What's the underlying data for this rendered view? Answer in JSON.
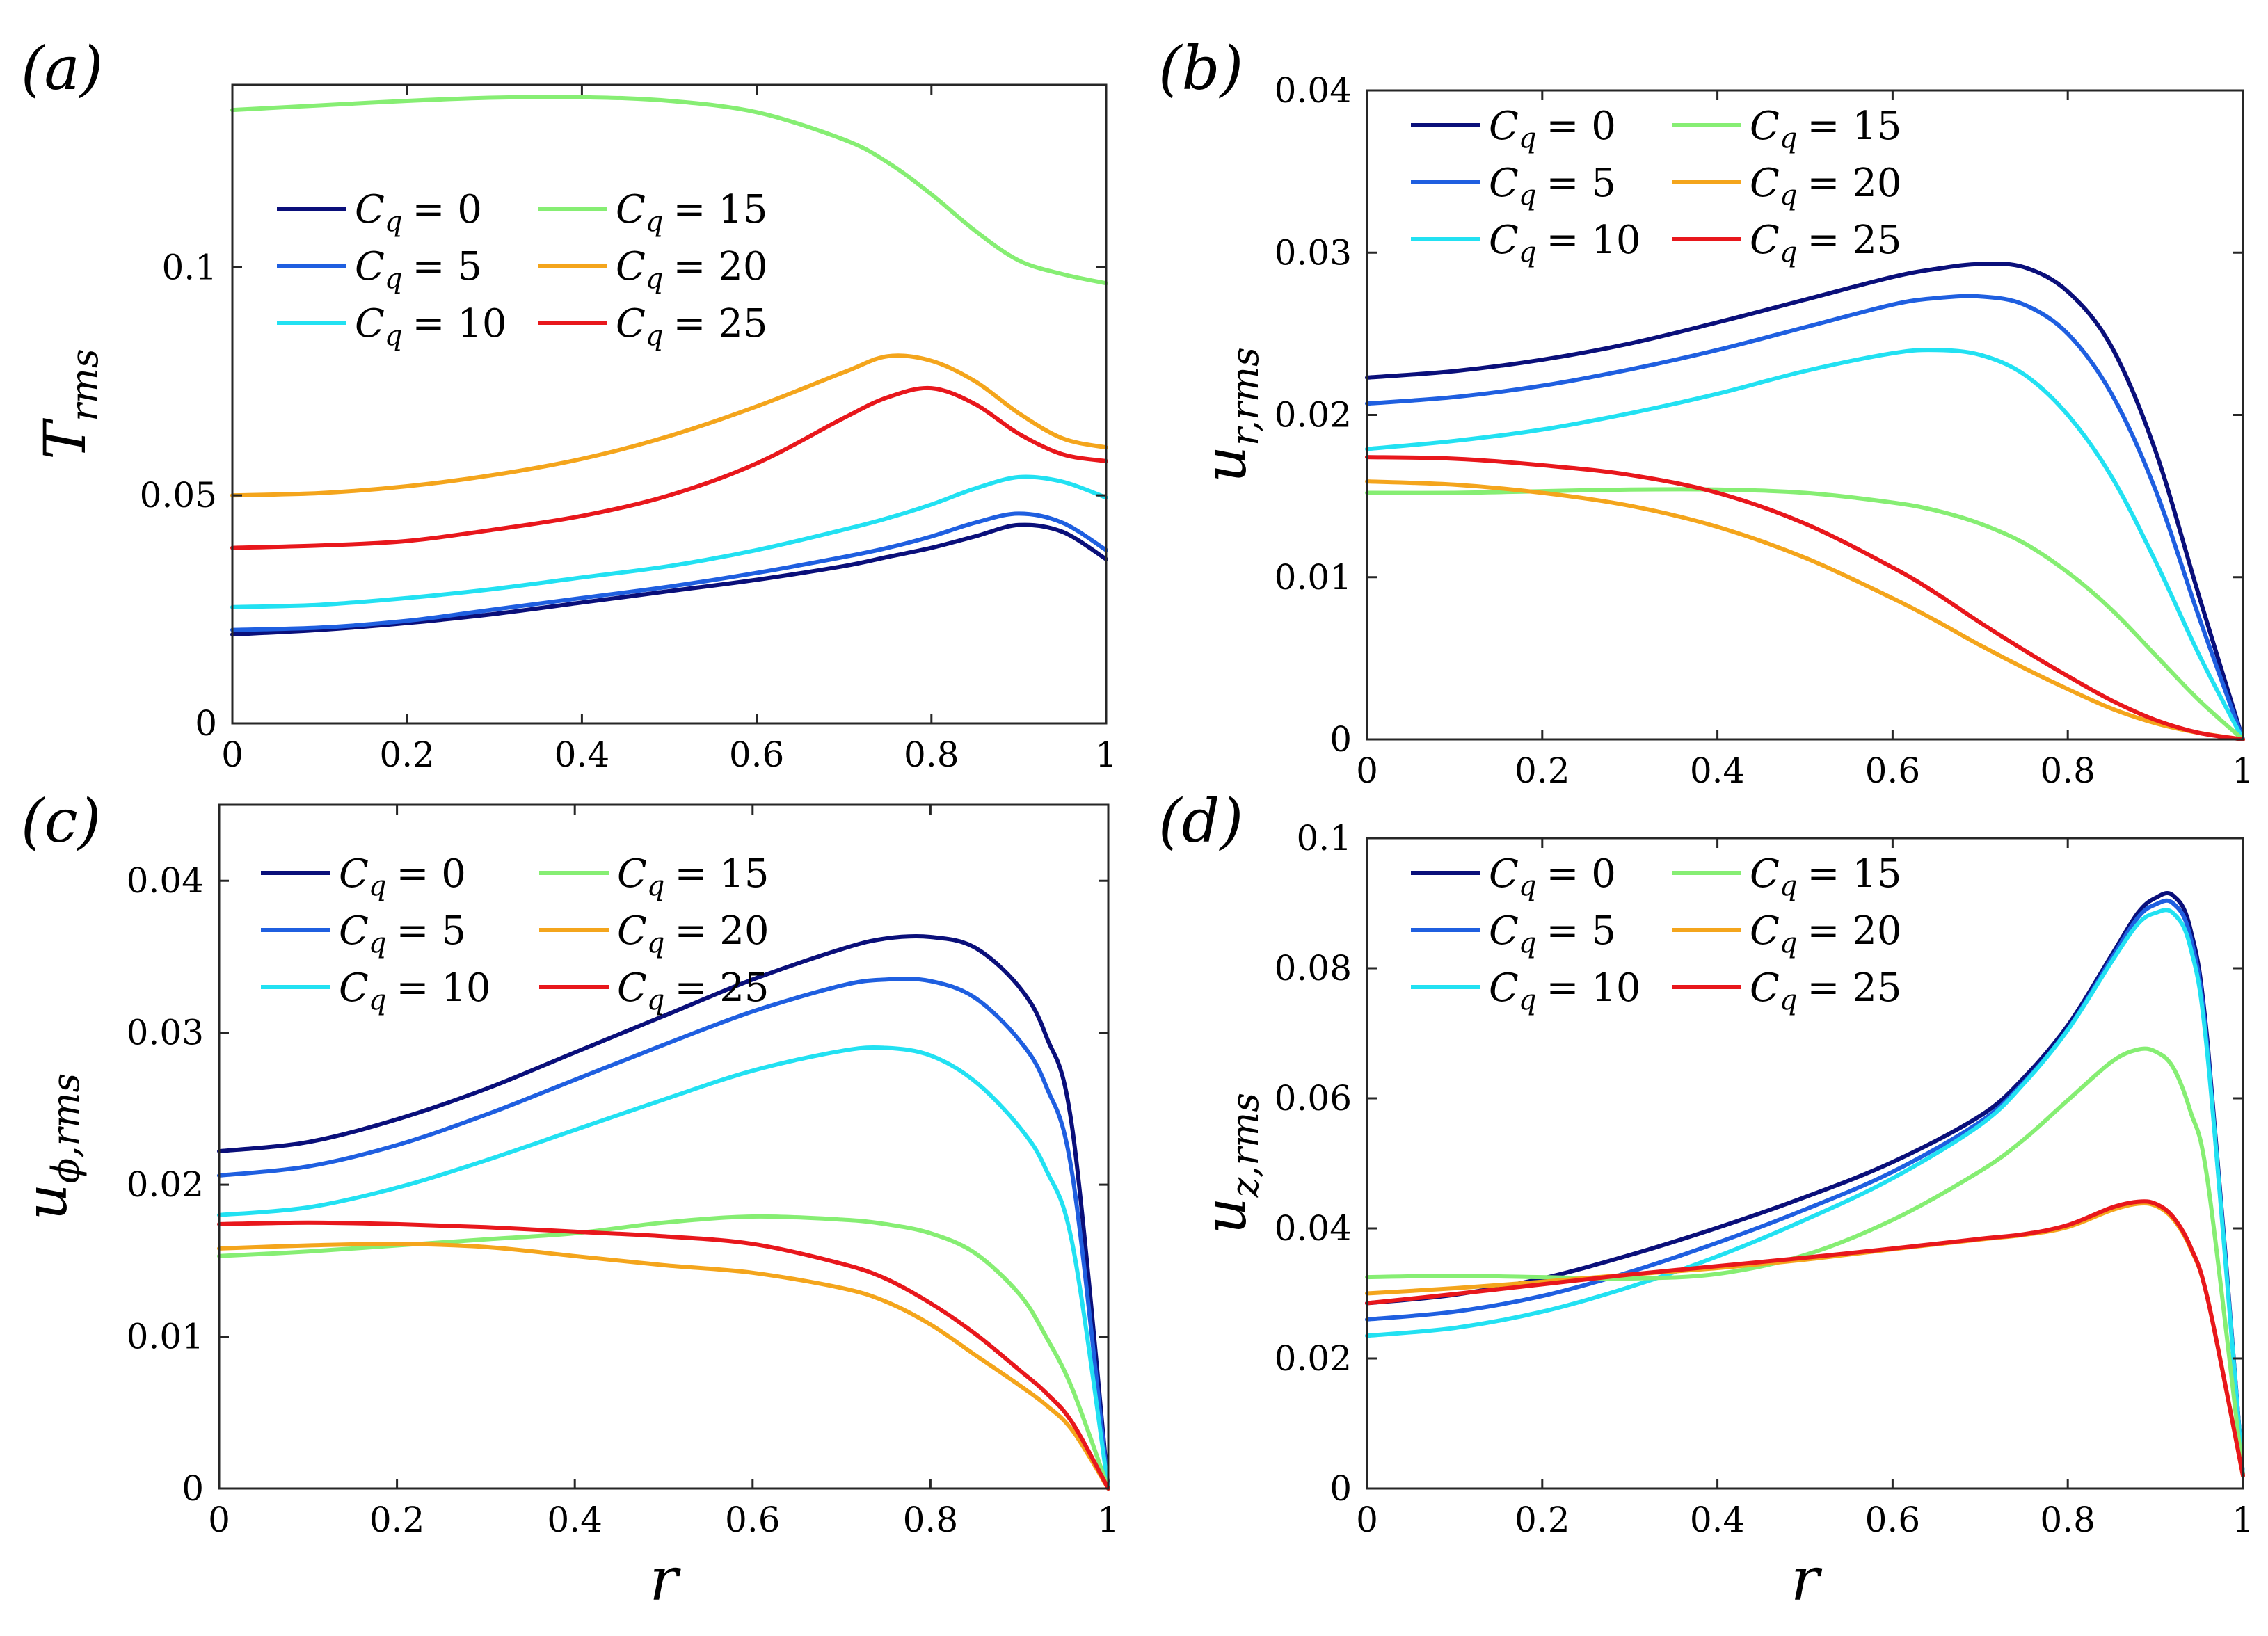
{
  "colors": [
    "#0a0f7a",
    "#1f5fe0",
    "#22e1f2",
    "#86ee73",
    "#f4a51c",
    "#e8171c"
  ],
  "chart_data": [
    {
      "id": "a",
      "type": "line",
      "panel_label": "(a)",
      "ylabel_main": "T",
      "ylabel_sub": "rms",
      "xlabel": "",
      "xlim": [
        0,
        1
      ],
      "ylim": [
        0,
        0.14
      ],
      "xticks": [
        0,
        0.2,
        0.4,
        0.6,
        0.8,
        1
      ],
      "xtick_labels": [
        "0",
        "0.2",
        "0.4",
        "0.6",
        "0.8",
        "1"
      ],
      "yticks": [
        0,
        0.05,
        0.1
      ],
      "ytick_labels": [
        "0",
        "0.05",
        "0.1"
      ],
      "legend": "upper-left",
      "x": [
        0,
        0.1,
        0.2,
        0.3,
        0.4,
        0.5,
        0.6,
        0.7,
        0.75,
        0.8,
        0.85,
        0.9,
        0.95,
        1
      ],
      "series": [
        {
          "name": "C_q = 0",
          "values": [
            0.0195,
            0.0205,
            0.022,
            0.024,
            0.0265,
            0.029,
            0.0315,
            0.0345,
            0.0365,
            0.0385,
            0.041,
            0.0435,
            0.042,
            0.036
          ]
        },
        {
          "name": "C_q = 5",
          "values": [
            0.0205,
            0.021,
            0.0225,
            0.025,
            0.0275,
            0.03,
            0.033,
            0.0365,
            0.0385,
            0.041,
            0.044,
            0.046,
            0.044,
            0.038
          ]
        },
        {
          "name": "C_q = 10",
          "values": [
            0.0255,
            0.026,
            0.0275,
            0.0295,
            0.032,
            0.0345,
            0.038,
            0.0425,
            0.045,
            0.048,
            0.0515,
            0.054,
            0.053,
            0.0495
          ]
        },
        {
          "name": "C_q = 15",
          "values": [
            0.1345,
            0.1355,
            0.1365,
            0.1372,
            0.1373,
            0.1365,
            0.134,
            0.128,
            0.123,
            0.116,
            0.108,
            0.1015,
            0.0985,
            0.0965
          ]
        },
        {
          "name": "C_q = 20",
          "values": [
            0.05,
            0.0505,
            0.052,
            0.0545,
            0.058,
            0.063,
            0.0695,
            0.077,
            0.0805,
            0.0795,
            0.075,
            0.068,
            0.0625,
            0.0605
          ]
        },
        {
          "name": "C_q = 25",
          "values": [
            0.0385,
            0.039,
            0.04,
            0.0425,
            0.0455,
            0.05,
            0.057,
            0.067,
            0.0715,
            0.0735,
            0.07,
            0.0635,
            0.059,
            0.0575
          ]
        }
      ]
    },
    {
      "id": "b",
      "type": "line",
      "panel_label": "(b)",
      "ylabel_main": "u",
      "ylabel_sub": "r,rms",
      "xlabel": "",
      "xlim": [
        0,
        1
      ],
      "ylim": [
        0,
        0.04
      ],
      "xticks": [
        0,
        0.2,
        0.4,
        0.6,
        0.8,
        1
      ],
      "xtick_labels": [
        "0",
        "0.2",
        "0.4",
        "0.6",
        "0.8",
        "1"
      ],
      "yticks": [
        0,
        0.01,
        0.02,
        0.03,
        0.04
      ],
      "ytick_labels": [
        "0",
        "0.01",
        "0.02",
        "0.03",
        "0.04"
      ],
      "legend": "top-left",
      "x": [
        0,
        0.1,
        0.2,
        0.3,
        0.4,
        0.5,
        0.6,
        0.65,
        0.7,
        0.75,
        0.8,
        0.85,
        0.9,
        0.95,
        1
      ],
      "series": [
        {
          "name": "C_q = 0",
          "values": [
            0.0223,
            0.0227,
            0.0234,
            0.0244,
            0.0257,
            0.0271,
            0.0285,
            0.029,
            0.0293,
            0.0291,
            0.0276,
            0.0242,
            0.0178,
            0.0088,
            0
          ]
        },
        {
          "name": "C_q = 5",
          "values": [
            0.0207,
            0.0211,
            0.0218,
            0.0228,
            0.024,
            0.0254,
            0.0268,
            0.0272,
            0.0273,
            0.0268,
            0.025,
            0.0213,
            0.0154,
            0.0075,
            0
          ]
        },
        {
          "name": "C_q = 10",
          "values": [
            0.0179,
            0.0184,
            0.0191,
            0.0201,
            0.0213,
            0.0227,
            0.0238,
            0.024,
            0.0237,
            0.0225,
            0.02,
            0.0162,
            0.011,
            0.0052,
            0
          ]
        },
        {
          "name": "C_q = 15",
          "values": [
            0.0152,
            0.0152,
            0.0153,
            0.0154,
            0.0154,
            0.0152,
            0.0146,
            0.0141,
            0.0133,
            0.0121,
            0.0103,
            0.008,
            0.0052,
            0.0024,
            0
          ]
        },
        {
          "name": "C_q = 20",
          "values": [
            0.0159,
            0.0157,
            0.0152,
            0.0144,
            0.0131,
            0.0112,
            0.0087,
            0.0073,
            0.0058,
            0.0044,
            0.0031,
            0.0019,
            0.001,
            0.0004,
            0
          ]
        },
        {
          "name": "C_q = 25",
          "values": [
            0.0174,
            0.0173,
            0.0169,
            0.0163,
            0.0152,
            0.0133,
            0.0106,
            0.009,
            0.0072,
            0.0055,
            0.0039,
            0.0024,
            0.0012,
            0.0004,
            0
          ]
        }
      ]
    },
    {
      "id": "c",
      "type": "line",
      "panel_label": "(c)",
      "ylabel_main": "u",
      "ylabel_sub": "ϕ,rms",
      "xlabel": "r",
      "xlim": [
        0,
        1
      ],
      "ylim": [
        0,
        0.045
      ],
      "xticks": [
        0,
        0.2,
        0.4,
        0.6,
        0.8,
        1
      ],
      "xtick_labels": [
        "0",
        "0.2",
        "0.4",
        "0.6",
        "0.8",
        "1"
      ],
      "yticks": [
        0,
        0.01,
        0.02,
        0.03,
        0.04
      ],
      "ytick_labels": [
        "0",
        "0.01",
        "0.02",
        "0.03",
        "0.04"
      ],
      "legend": "top",
      "x": [
        0,
        0.1,
        0.2,
        0.3,
        0.4,
        0.5,
        0.6,
        0.7,
        0.75,
        0.8,
        0.85,
        0.9,
        0.93,
        0.96,
        1
      ],
      "series": [
        {
          "name": "C_q = 0",
          "values": [
            0.0222,
            0.0228,
            0.0243,
            0.0263,
            0.0287,
            0.0311,
            0.0335,
            0.0355,
            0.0362,
            0.0363,
            0.0356,
            0.033,
            0.0298,
            0.0235,
            0
          ]
        },
        {
          "name": "C_q = 5",
          "values": [
            0.0206,
            0.0212,
            0.0226,
            0.0246,
            0.0269,
            0.0292,
            0.0314,
            0.0331,
            0.0335,
            0.0334,
            0.0323,
            0.0295,
            0.0265,
            0.0205,
            0
          ]
        },
        {
          "name": "C_q = 10",
          "values": [
            0.018,
            0.0185,
            0.0198,
            0.0216,
            0.0236,
            0.0256,
            0.0275,
            0.0288,
            0.029,
            0.0285,
            0.0268,
            0.0238,
            0.021,
            0.016,
            0
          ]
        },
        {
          "name": "C_q = 15",
          "values": [
            0.0153,
            0.0156,
            0.016,
            0.0164,
            0.0168,
            0.0175,
            0.0179,
            0.0177,
            0.0174,
            0.0168,
            0.0155,
            0.0128,
            0.01,
            0.0065,
            0
          ]
        },
        {
          "name": "C_q = 20",
          "values": [
            0.0158,
            0.016,
            0.0161,
            0.0159,
            0.0153,
            0.0147,
            0.0142,
            0.0132,
            0.0123,
            0.0108,
            0.0088,
            0.0068,
            0.0055,
            0.0038,
            0
          ]
        },
        {
          "name": "C_q = 25",
          "values": [
            0.0174,
            0.0175,
            0.0174,
            0.0172,
            0.0169,
            0.0166,
            0.0161,
            0.0148,
            0.0138,
            0.0122,
            0.0102,
            0.0078,
            0.0063,
            0.0043,
            0
          ]
        }
      ]
    },
    {
      "id": "d",
      "type": "line",
      "panel_label": "(d)",
      "ylabel_main": "u",
      "ylabel_sub": "z,rms",
      "xlabel": "r",
      "xlim": [
        0,
        1
      ],
      "ylim": [
        0,
        0.1
      ],
      "xticks": [
        0,
        0.2,
        0.4,
        0.6,
        0.8,
        1
      ],
      "xtick_labels": [
        "0",
        "0.2",
        "0.4",
        "0.6",
        "0.8",
        "1"
      ],
      "yticks": [
        0,
        0.02,
        0.04,
        0.06,
        0.08,
        0.1
      ],
      "ytick_labels": [
        "0",
        "0.02",
        "0.04",
        "0.06",
        "0.08",
        "0.1"
      ],
      "legend": "top-left",
      "x": [
        0,
        0.1,
        0.2,
        0.3,
        0.4,
        0.5,
        0.6,
        0.7,
        0.75,
        0.8,
        0.85,
        0.88,
        0.9,
        0.92,
        0.94,
        0.96,
        1
      ],
      "series": [
        {
          "name": "C_q = 0",
          "values": [
            0.0285,
            0.0298,
            0.0323,
            0.0359,
            0.0401,
            0.0448,
            0.0502,
            0.0573,
            0.0632,
            0.0712,
            0.082,
            0.0885,
            0.0908,
            0.0912,
            0.086,
            0.068,
            0.002
          ]
        },
        {
          "name": "C_q = 5",
          "values": [
            0.026,
            0.0272,
            0.0296,
            0.0333,
            0.0378,
            0.0429,
            0.0487,
            0.0564,
            0.0625,
            0.0706,
            0.0815,
            0.0878,
            0.0898,
            0.09,
            0.0848,
            0.067,
            0.002
          ]
        },
        {
          "name": "C_q = 10",
          "values": [
            0.0235,
            0.0247,
            0.0272,
            0.031,
            0.0357,
            0.0413,
            0.0477,
            0.0559,
            0.0623,
            0.0705,
            0.081,
            0.0868,
            0.0885,
            0.0885,
            0.0832,
            0.066,
            0.002
          ]
        },
        {
          "name": "C_q = 15",
          "values": [
            0.0325,
            0.0327,
            0.0325,
            0.0323,
            0.033,
            0.0359,
            0.0413,
            0.0488,
            0.0537,
            0.0597,
            0.0656,
            0.0675,
            0.0672,
            0.0648,
            0.058,
            0.047,
            0.002
          ]
        },
        {
          "name": "C_q = 20",
          "values": [
            0.03,
            0.0308,
            0.0318,
            0.0329,
            0.0339,
            0.0352,
            0.0368,
            0.0383,
            0.039,
            0.0402,
            0.0428,
            0.0438,
            0.0435,
            0.0415,
            0.037,
            0.029,
            0.002
          ]
        },
        {
          "name": "C_q = 25",
          "values": [
            0.0285,
            0.0299,
            0.0314,
            0.0329,
            0.0342,
            0.0355,
            0.0369,
            0.0384,
            0.0391,
            0.0405,
            0.0432,
            0.0441,
            0.0438,
            0.0418,
            0.0372,
            0.029,
            0.002
          ]
        }
      ]
    }
  ],
  "legend_entries": [
    {
      "symbol": "C",
      "sub": "q",
      "value": "= 0"
    },
    {
      "symbol": "C",
      "sub": "q",
      "value": "= 5"
    },
    {
      "symbol": "C",
      "sub": "q",
      "value": "= 10"
    },
    {
      "symbol": "C",
      "sub": "q",
      "value": "= 15"
    },
    {
      "symbol": "C",
      "sub": "q",
      "value": "= 20"
    },
    {
      "symbol": "C",
      "sub": "q",
      "value": "= 25"
    }
  ]
}
